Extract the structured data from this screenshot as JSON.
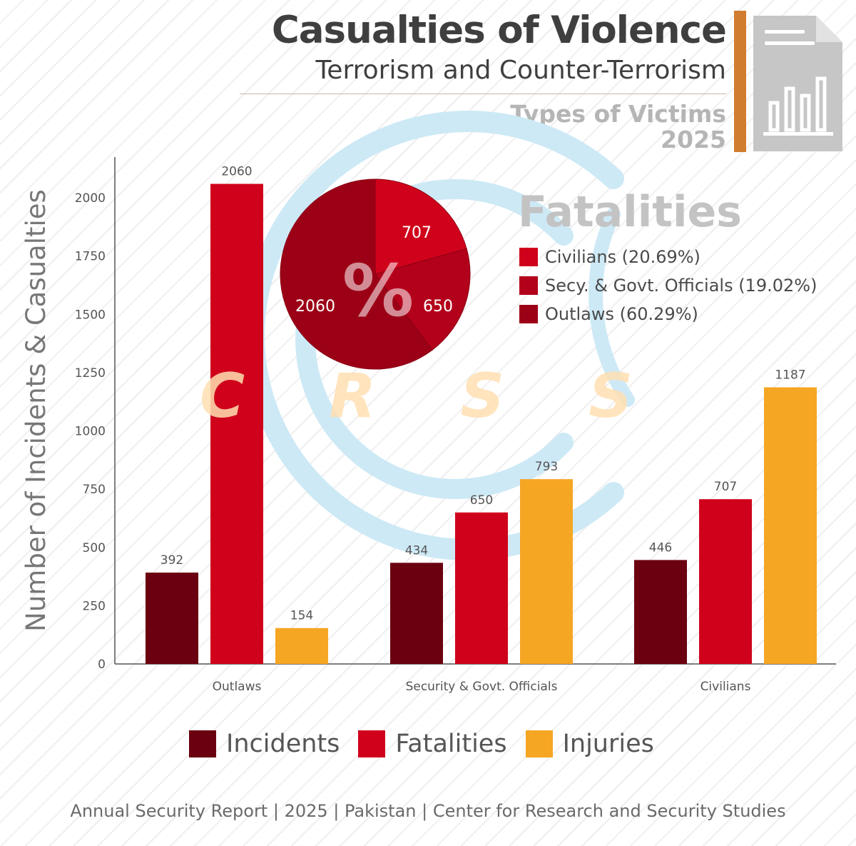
{
  "header": {
    "title": "Casualties of Violence",
    "subtitle": "Terrorism and Counter-Terrorism",
    "victims_label": "Types of Victims",
    "year": "2025"
  },
  "icons": {
    "report": "document-bar-chart-icon"
  },
  "watermark": "C R S S",
  "colors": {
    "incidents": "#6b0010",
    "fatalities": "#d0021b",
    "injuries": "#f5a623",
    "axis": "#555555",
    "accent": "#d17d2f"
  },
  "chart_data": [
    {
      "type": "bar",
      "categories": [
        "Outlaws",
        "Security & Govt. Officials",
        "Civilians"
      ],
      "series": [
        {
          "name": "Incidents",
          "values": [
            392,
            434,
            446
          ]
        },
        {
          "name": "Fatalities",
          "values": [
            2060,
            650,
            707
          ]
        },
        {
          "name": "Injuries",
          "values": [
            154,
            793,
            1187
          ]
        }
      ],
      "ylabel": "Number of Incidents & Casualties",
      "xlabel": "",
      "ylim": [
        0,
        2175
      ],
      "yticks": [
        0,
        250,
        500,
        750,
        1000,
        1250,
        1500,
        1750,
        2000
      ],
      "legend": "bottom",
      "grid": false
    },
    {
      "type": "pie",
      "title": "Fatalities",
      "center_label": "%",
      "slices": [
        {
          "label": "Civilians (20.69%)",
          "value": 707
        },
        {
          "label": "Secy. & Govt. Officials (19.02%)",
          "value": 650
        },
        {
          "label": "Outlaws (60.29%)",
          "value": 2060
        }
      ],
      "colors": [
        "#d0021b",
        "#b3001b",
        "#9c0016"
      ],
      "legend": "right"
    }
  ],
  "footer": "Annual Security Report | 2025 | Pakistan | Center for Research and Security Studies"
}
